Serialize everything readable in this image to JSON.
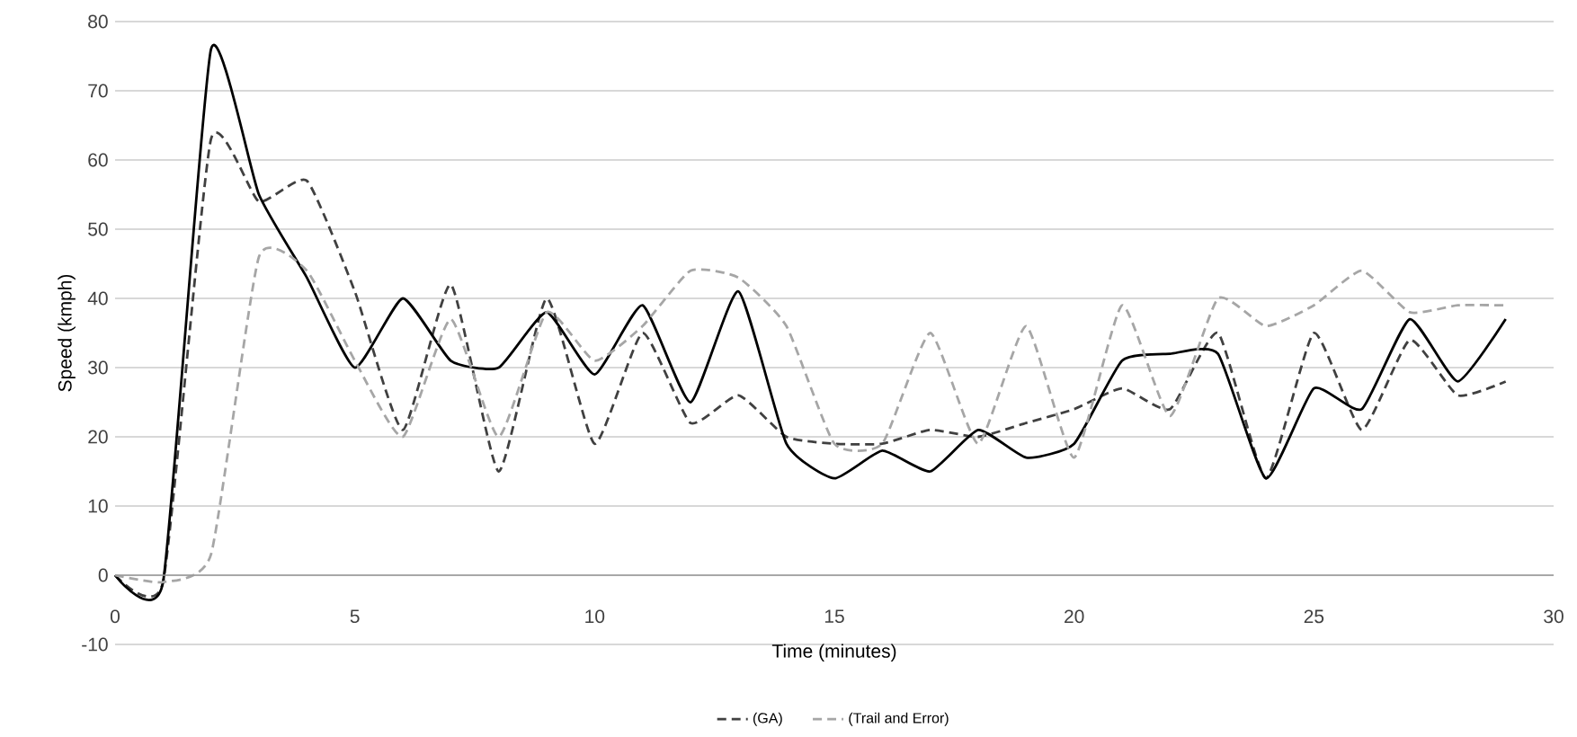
{
  "chart_data": {
    "type": "line",
    "xlabel": "Time (minutes)",
    "ylabel": "Speed (kmph)",
    "x": [
      0,
      1,
      2,
      3,
      4,
      5,
      6,
      7,
      8,
      9,
      10,
      11,
      12,
      13,
      14,
      15,
      16,
      17,
      18,
      19,
      20,
      21,
      22,
      23,
      24,
      25,
      26,
      27,
      28,
      29
    ],
    "series": [
      {
        "name": "(GA)",
        "color": "#404040",
        "line_style": "dashed",
        "values": [
          0,
          -1,
          63,
          54,
          57,
          41,
          21,
          42,
          15,
          40,
          19,
          35,
          22,
          26,
          20,
          19,
          19,
          21,
          20,
          22,
          24,
          27,
          24,
          35,
          14,
          35,
          21,
          34,
          26,
          28
        ]
      },
      {
        "color": "#000000",
        "line_style": "solid",
        "values": [
          0,
          -1,
          76,
          55,
          43,
          30,
          40,
          31,
          30,
          38,
          29,
          39,
          25,
          41,
          19,
          14,
          18,
          15,
          21,
          17,
          19,
          31,
          32,
          32,
          14,
          27,
          24,
          37,
          28,
          37
        ]
      },
      {
        "name": "(Trail and Error)",
        "color": "#a6a6a6",
        "line_style": "dashed",
        "values": [
          0,
          -1,
          3,
          46,
          44,
          31,
          20,
          37,
          20,
          38,
          31,
          36,
          44,
          43,
          36,
          19,
          19,
          35,
          19,
          36,
          17,
          39,
          23,
          40,
          36,
          39,
          44,
          38,
          39,
          39
        ]
      }
    ],
    "xlim": [
      0,
      30
    ],
    "ylim": [
      -10,
      80
    ],
    "xticks": [
      0,
      5,
      10,
      15,
      20,
      25,
      30
    ],
    "yticks": [
      -10,
      0,
      10,
      20,
      30,
      40,
      50,
      60,
      70,
      80
    ],
    "grid": "y",
    "legend": "bottom",
    "marker": "none"
  }
}
